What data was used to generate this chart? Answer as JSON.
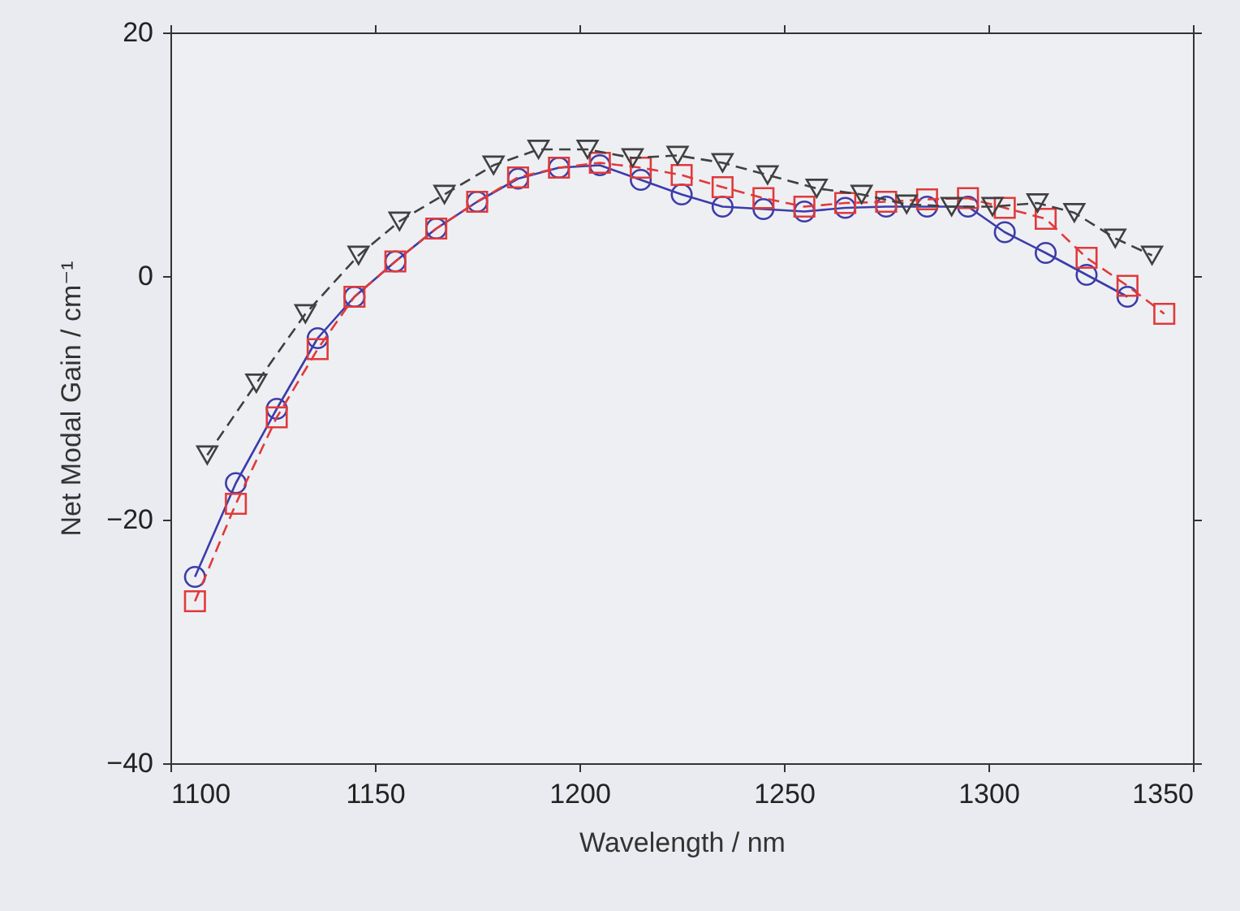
{
  "chart_data": {
    "type": "line",
    "xlabel": "Wavelength / nm",
    "ylabel": "Net Modal Gain / cm⁻¹",
    "xlim": [
      1100,
      1350
    ],
    "xticks": [
      1100,
      1150,
      1200,
      1250,
      1300,
      1350
    ],
    "ylim": [
      -40,
      20
    ],
    "yticks": [
      -40,
      -20,
      0,
      20
    ],
    "grid": false,
    "series": [
      {
        "color": "#3c3caa",
        "marker": "circle",
        "line_style": "solid",
        "x": [
          1106,
          1116,
          1126,
          1136,
          1145,
          1155,
          1165,
          1175,
          1185,
          1195,
          1205,
          1215,
          1225,
          1235,
          1245,
          1255,
          1265,
          1275,
          1285,
          1295,
          1304,
          1314,
          1324,
          1334
        ],
        "values": [
          -24.7,
          -17,
          -10.9,
          -5.1,
          -1.7,
          1.2,
          3.9,
          6.1,
          8,
          8.9,
          9.1,
          7.9,
          6.7,
          5.7,
          5.5,
          5.3,
          5.6,
          5.7,
          5.7,
          5.7,
          3.6,
          1.9,
          0.1,
          -1.7
        ]
      },
      {
        "color": "#e03a3a",
        "marker": "square",
        "line_style": "dashed",
        "x": [
          1106,
          1116,
          1126,
          1136,
          1145,
          1155,
          1165,
          1175,
          1185,
          1195,
          1205,
          1215,
          1225,
          1235,
          1245,
          1255,
          1265,
          1275,
          1285,
          1295,
          1304,
          1314,
          1324,
          1334,
          1343
        ],
        "values": [
          -26.7,
          -18.7,
          -11.6,
          -6,
          -1.7,
          1.2,
          3.9,
          6.1,
          8.1,
          8.9,
          9.3,
          8.9,
          8.3,
          7.3,
          6.4,
          5.7,
          6,
          6.1,
          6.3,
          6.4,
          5.6,
          4.7,
          1.5,
          -0.8,
          -3.1
        ]
      },
      {
        "color": "#404040",
        "marker": "triangle",
        "line_style": "dashed",
        "x": [
          1109,
          1121,
          1133,
          1146,
          1156,
          1167,
          1179,
          1190,
          1202,
          1213,
          1224,
          1235,
          1246,
          1258,
          1269,
          1280,
          1291,
          1301,
          1312,
          1321,
          1331,
          1340
        ],
        "values": [
          -14.7,
          -8.8,
          -3.1,
          1.7,
          4.5,
          6.7,
          9.1,
          10.4,
          10.4,
          9.7,
          9.9,
          9.3,
          8.3,
          7.2,
          6.7,
          5.9,
          5.7,
          5.7,
          6,
          5.2,
          3.1,
          1.7
        ]
      }
    ]
  }
}
